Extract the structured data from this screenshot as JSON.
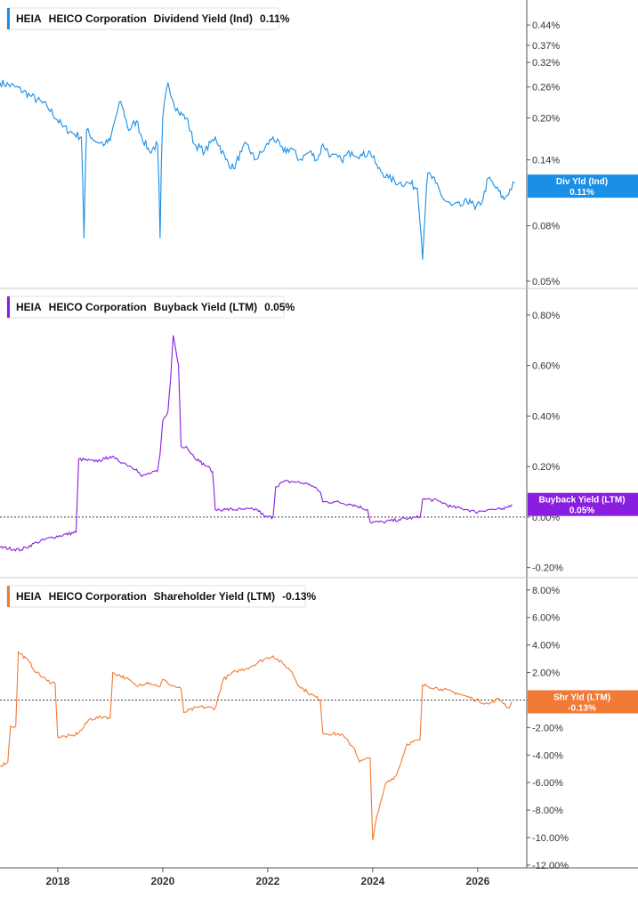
{
  "x_axis": {
    "ticks": [
      "2018",
      "2020",
      "2022",
      "2024",
      "2026"
    ],
    "tick_years": [
      2018,
      2020,
      2022,
      2024,
      2026
    ],
    "range": [
      2016.9,
      2026.9
    ]
  },
  "chart_data": [
    {
      "type": "line",
      "id": "dividend",
      "legend": {
        "ticker": "HEIA",
        "company": "HEICO Corporation",
        "metric": "Dividend Yield (Ind)",
        "value": "0.11%"
      },
      "color": "#1a8fe6",
      "y_scale": "log",
      "ylim": [
        0.047,
        0.52
      ],
      "y_ticks": [
        0.44,
        0.37,
        0.32,
        0.26,
        0.2,
        0.14,
        0.08,
        0.05
      ],
      "y_tick_labels": [
        "0.44%",
        "0.37%",
        "0.32%",
        "0.26%",
        "0.20%",
        "0.14%",
        "0.08%",
        "0.05%"
      ],
      "flag": {
        "line1": "Div Yld (Ind)",
        "line2": "0.11%",
        "value": 0.112
      },
      "series": [
        {
          "x": [
            2016.9,
            2017.2,
            2017.5,
            2017.8,
            2018.1,
            2018.3,
            2018.45,
            2018.5,
            2018.55,
            2018.7,
            2018.9,
            2019.0,
            2019.1,
            2019.2,
            2019.35,
            2019.5,
            2019.6,
            2019.75,
            2019.9,
            2019.95,
            2020.0,
            2020.1,
            2020.2,
            2020.3,
            2020.45,
            2020.6,
            2020.8,
            2021.0,
            2021.2,
            2021.35,
            2021.5,
            2021.6,
            2021.75,
            2021.9,
            2022.1,
            2022.3,
            2022.45,
            2022.6,
            2022.8,
            2022.95,
            2023.05,
            2023.2,
            2023.4,
            2023.6,
            2023.8,
            2023.95,
            2024.1,
            2024.3,
            2024.5,
            2024.7,
            2024.85,
            2024.95,
            2025.05,
            2025.2,
            2025.35,
            2025.5,
            2025.7,
            2025.85,
            2025.95,
            2026.1,
            2026.2,
            2026.35,
            2026.5,
            2026.7
          ],
          "y": [
            0.27,
            0.26,
            0.24,
            0.22,
            0.185,
            0.175,
            0.17,
            0.072,
            0.18,
            0.165,
            0.16,
            0.165,
            0.2,
            0.23,
            0.18,
            0.195,
            0.17,
            0.15,
            0.16,
            0.072,
            0.2,
            0.27,
            0.23,
            0.21,
            0.2,
            0.16,
            0.15,
            0.17,
            0.14,
            0.13,
            0.15,
            0.16,
            0.14,
            0.15,
            0.17,
            0.15,
            0.155,
            0.14,
            0.15,
            0.14,
            0.16,
            0.145,
            0.14,
            0.15,
            0.145,
            0.15,
            0.13,
            0.12,
            0.115,
            0.115,
            0.11,
            0.06,
            0.125,
            0.115,
            0.1,
            0.095,
            0.095,
            0.1,
            0.092,
            0.1,
            0.12,
            0.11,
            0.1,
            0.115
          ]
        }
      ]
    },
    {
      "type": "line",
      "id": "buyback",
      "legend": {
        "ticker": "HEIA",
        "company": "HEICO Corporation",
        "metric": "Buyback Yield (LTM)",
        "value": "0.05%"
      },
      "color": "#8a1ee0",
      "y_scale": "linear",
      "ylim": [
        -0.24,
        0.87
      ],
      "y_ticks": [
        0.8,
        0.6,
        0.4,
        0.2,
        0.0,
        -0.2
      ],
      "y_tick_labels": [
        "0.80%",
        "0.60%",
        "0.40%",
        "0.20%",
        "0.00%",
        "-0.20%"
      ],
      "zero_line": 0,
      "flag": {
        "line1": "Buyback Yield (LTM)",
        "line2": "0.05%",
        "value": 0.05
      },
      "series": [
        {
          "x": [
            2016.9,
            2017.3,
            2017.6,
            2017.9,
            2018.35,
            2018.4,
            2018.7,
            2018.9,
            2019.0,
            2019.1,
            2019.3,
            2019.5,
            2019.6,
            2019.7,
            2019.9,
            2019.95,
            2020.0,
            2020.1,
            2020.15,
            2020.2,
            2020.3,
            2020.35,
            2020.45,
            2020.55,
            2020.7,
            2020.85,
            2020.95,
            2021.0,
            2021.2,
            2021.5,
            2021.8,
            2021.95,
            2022.1,
            2022.15,
            2022.3,
            2022.5,
            2022.8,
            2023.0,
            2023.05,
            2023.3,
            2023.6,
            2023.9,
            2023.95,
            2024.2,
            2024.5,
            2024.9,
            2024.95,
            2025.1,
            2025.3,
            2025.5,
            2025.8,
            2025.95,
            2026.2,
            2026.5,
            2026.65
          ],
          "y": [
            -0.12,
            -0.13,
            -0.1,
            -0.08,
            -0.06,
            0.23,
            0.22,
            0.23,
            0.24,
            0.23,
            0.21,
            0.19,
            0.16,
            0.17,
            0.18,
            0.25,
            0.38,
            0.42,
            0.55,
            0.72,
            0.6,
            0.28,
            0.28,
            0.25,
            0.22,
            0.2,
            0.18,
            0.03,
            0.03,
            0.03,
            0.03,
            0.0,
            0.0,
            0.12,
            0.14,
            0.14,
            0.13,
            0.1,
            0.06,
            0.06,
            0.05,
            0.03,
            -0.02,
            -0.02,
            -0.01,
            0.0,
            0.07,
            0.07,
            0.06,
            0.04,
            0.03,
            0.02,
            0.03,
            0.03,
            0.05
          ]
        }
      ]
    },
    {
      "type": "line",
      "id": "shareholder",
      "legend": {
        "ticker": "HEIA",
        "company": "HEICO Corporation",
        "metric": "Shareholder Yield (LTM)",
        "value": "-0.13%"
      },
      "color": "#f07a36",
      "y_scale": "linear",
      "ylim": [
        -12.2,
        8.7
      ],
      "y_ticks": [
        8,
        6,
        4,
        2,
        0,
        -2,
        -4,
        -6,
        -8,
        -10,
        -12
      ],
      "y_tick_labels": [
        "8.00%",
        "6.00%",
        "4.00%",
        "2.00%",
        "0.00%",
        "-2.00%",
        "-4.00%",
        "-6.00%",
        "-8.00%",
        "-10.00%",
        "-12.00%"
      ],
      "zero_line": 0,
      "flag": {
        "line1": "Shr Yld (LTM)",
        "line2": "-0.13%",
        "value": -0.13
      },
      "series": [
        {
          "x": [
            2016.9,
            2017.05,
            2017.1,
            2017.2,
            2017.25,
            2017.4,
            2017.6,
            2017.8,
            2017.95,
            2018.0,
            2018.3,
            2018.45,
            2018.6,
            2018.9,
            2019.0,
            2019.05,
            2019.3,
            2019.5,
            2019.7,
            2019.95,
            2020.0,
            2020.1,
            2020.35,
            2020.4,
            2020.7,
            2021.0,
            2021.15,
            2021.4,
            2021.6,
            2021.95,
            2022.1,
            2022.3,
            2022.45,
            2022.6,
            2022.75,
            2023.0,
            2023.05,
            2023.4,
            2023.65,
            2023.75,
            2023.95,
            2024.0,
            2024.05,
            2024.25,
            2024.45,
            2024.65,
            2024.9,
            2024.95,
            2025.3,
            2025.6,
            2025.9,
            2026.2,
            2026.4,
            2026.6,
            2026.65
          ],
          "y": [
            -4.8,
            -4.5,
            -1.9,
            -1.9,
            3.5,
            3.0,
            2.0,
            1.4,
            1.2,
            -2.7,
            -2.6,
            -2.2,
            -1.4,
            -1.2,
            -1.3,
            2.0,
            1.6,
            1.0,
            1.3,
            1.0,
            1.5,
            1.2,
            0.8,
            -0.9,
            -0.5,
            -0.6,
            1.5,
            2.1,
            2.3,
            3.0,
            3.2,
            2.6,
            2.1,
            1.0,
            0.6,
            0.0,
            -2.4,
            -2.5,
            -3.5,
            -4.5,
            -4.2,
            -10.2,
            -9.0,
            -6.0,
            -5.5,
            -3.2,
            -2.9,
            1.1,
            0.8,
            0.5,
            0.1,
            -0.3,
            0.1,
            -0.6,
            -0.13
          ]
        }
      ]
    }
  ]
}
